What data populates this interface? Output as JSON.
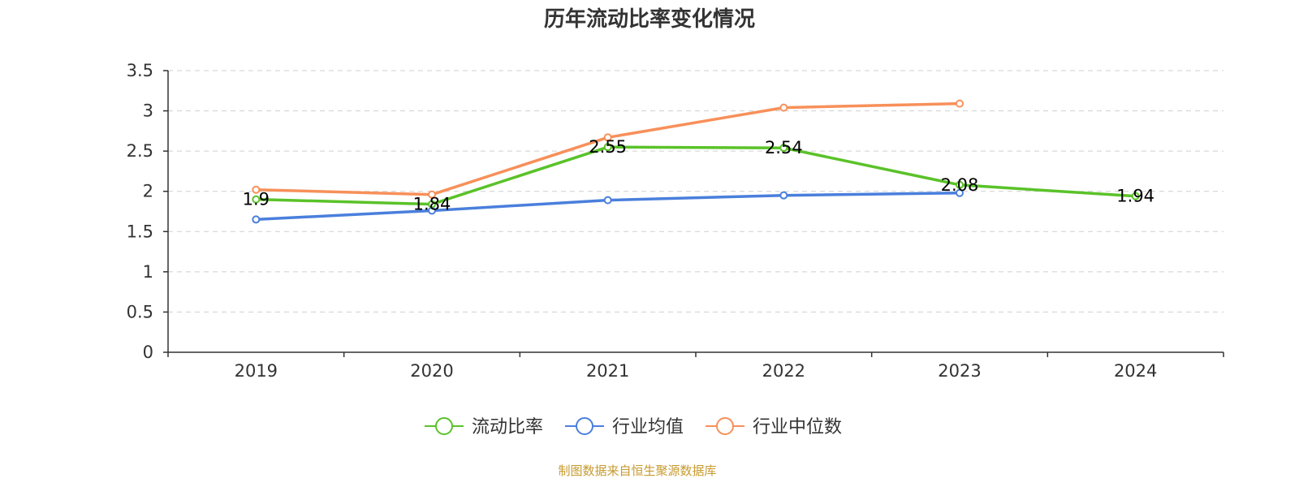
{
  "chart_data": {
    "type": "line",
    "title": "历年流动比率变化情况",
    "categories": [
      "2019",
      "2020",
      "2021",
      "2022",
      "2023",
      "2024"
    ],
    "ylim": [
      0,
      3.5
    ],
    "yticks": [
      0,
      0.5,
      1,
      1.5,
      2,
      2.5,
      3,
      3.5
    ],
    "ytick_labels": [
      "0",
      "0.5",
      "1",
      "1.5",
      "2",
      "2.5",
      "3",
      "3.5"
    ],
    "grid": "horizontal-dashed",
    "legend_position": "bottom-center",
    "series": [
      {
        "name": "流动比率",
        "color": "#5ac229",
        "values": [
          1.9,
          1.84,
          2.55,
          2.54,
          2.08,
          1.94
        ],
        "data_labels": [
          "1.9",
          "1.84",
          "2.55",
          "2.54",
          "2.08",
          "1.94"
        ]
      },
      {
        "name": "行业均值",
        "color": "#4a7fdc",
        "values": [
          1.65,
          1.76,
          1.89,
          1.95,
          1.98,
          null
        ]
      },
      {
        "name": "行业中位数",
        "color": "#f7905a",
        "values": [
          2.02,
          1.96,
          2.67,
          3.04,
          3.09,
          null
        ]
      }
    ],
    "source": "制图数据来自恒生聚源数据库"
  }
}
